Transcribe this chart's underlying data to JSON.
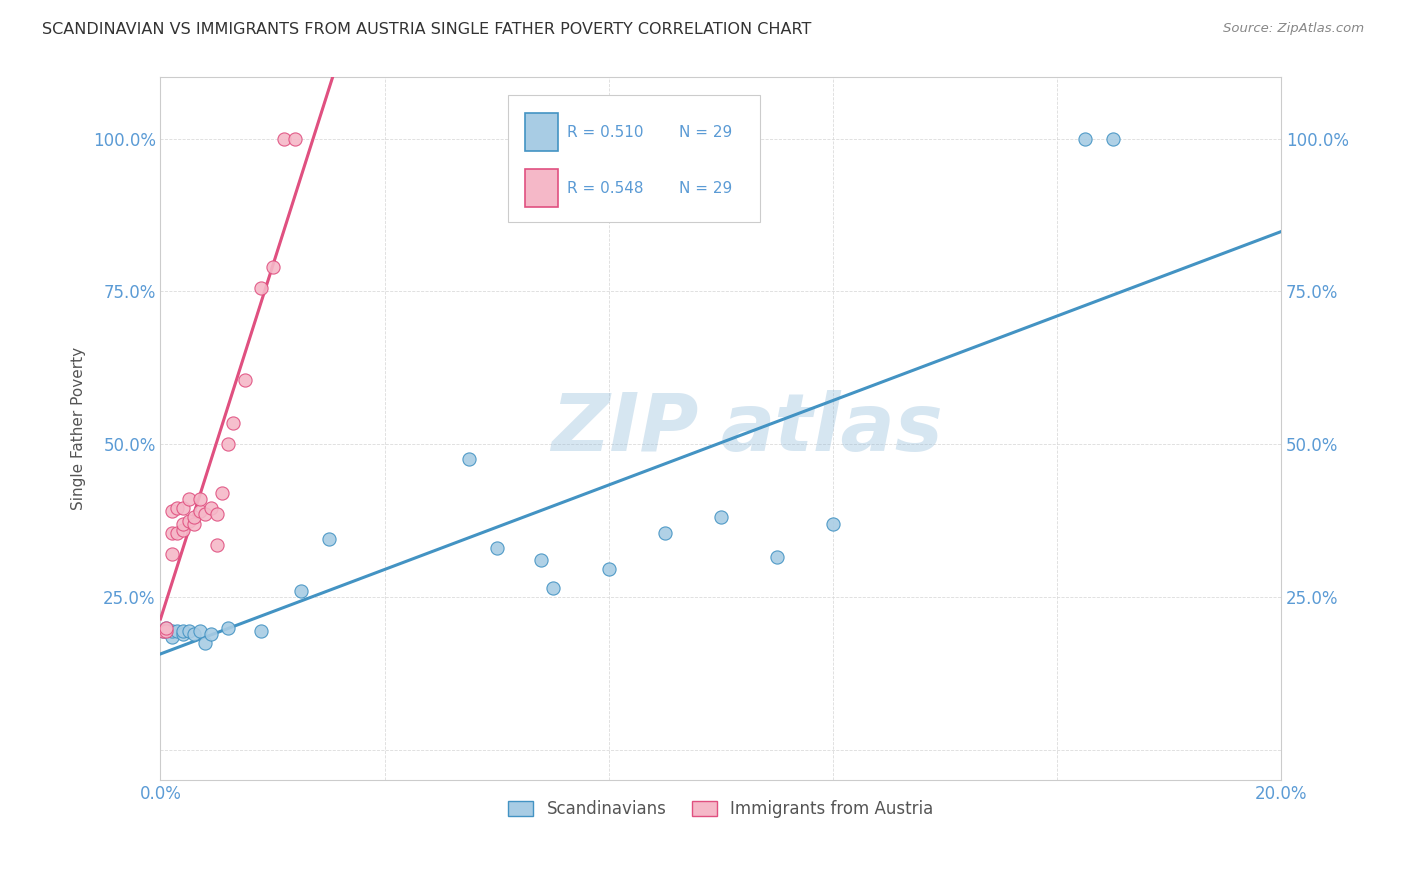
{
  "title": "SCANDINAVIAN VS IMMIGRANTS FROM AUSTRIA SINGLE FATHER POVERTY CORRELATION CHART",
  "source": "Source: ZipAtlas.com",
  "ylabel": "Single Father Poverty",
  "legend_label_1": "Scandinavians",
  "legend_label_2": "Immigrants from Austria",
  "r1": "0.510",
  "n1": "29",
  "r2": "0.548",
  "n2": "29",
  "color_blue": "#a8cce4",
  "color_pink": "#f5b8c8",
  "line_blue": "#4393c3",
  "line_pink": "#e05080",
  "line_gray": "#c0c0c0",
  "watermark_zip": "ZIP",
  "watermark_atlas": "atlas",
  "xlim": [
    0.0,
    0.2
  ],
  "ylim": [
    -0.05,
    1.1
  ],
  "xticks": [
    0.0,
    0.04,
    0.08,
    0.12,
    0.16,
    0.2
  ],
  "yticks": [
    0.0,
    0.25,
    0.5,
    0.75,
    1.0
  ],
  "scandinavian_x": [
    0.0005,
    0.001,
    0.001,
    0.0015,
    0.002,
    0.002,
    0.003,
    0.004,
    0.004,
    0.005,
    0.006,
    0.007,
    0.008,
    0.009,
    0.012,
    0.018,
    0.025,
    0.03,
    0.055,
    0.06,
    0.068,
    0.07,
    0.08,
    0.09,
    0.1,
    0.11,
    0.12,
    0.165,
    0.17
  ],
  "scandinavian_y": [
    0.195,
    0.195,
    0.2,
    0.195,
    0.185,
    0.195,
    0.195,
    0.19,
    0.195,
    0.195,
    0.19,
    0.195,
    0.175,
    0.19,
    0.2,
    0.195,
    0.26,
    0.345,
    0.475,
    0.33,
    0.31,
    0.265,
    0.295,
    0.355,
    0.38,
    0.315,
    0.37,
    1.0,
    1.0
  ],
  "austria_x": [
    0.0005,
    0.001,
    0.001,
    0.002,
    0.002,
    0.002,
    0.003,
    0.003,
    0.004,
    0.004,
    0.004,
    0.005,
    0.005,
    0.006,
    0.006,
    0.007,
    0.007,
    0.008,
    0.009,
    0.01,
    0.01,
    0.011,
    0.012,
    0.013,
    0.015,
    0.018,
    0.02,
    0.022,
    0.024
  ],
  "austria_y": [
    0.195,
    0.195,
    0.2,
    0.32,
    0.355,
    0.39,
    0.355,
    0.395,
    0.36,
    0.37,
    0.395,
    0.375,
    0.41,
    0.37,
    0.38,
    0.39,
    0.41,
    0.385,
    0.395,
    0.335,
    0.385,
    0.42,
    0.5,
    0.535,
    0.605,
    0.755,
    0.79,
    1.0,
    1.0
  ]
}
